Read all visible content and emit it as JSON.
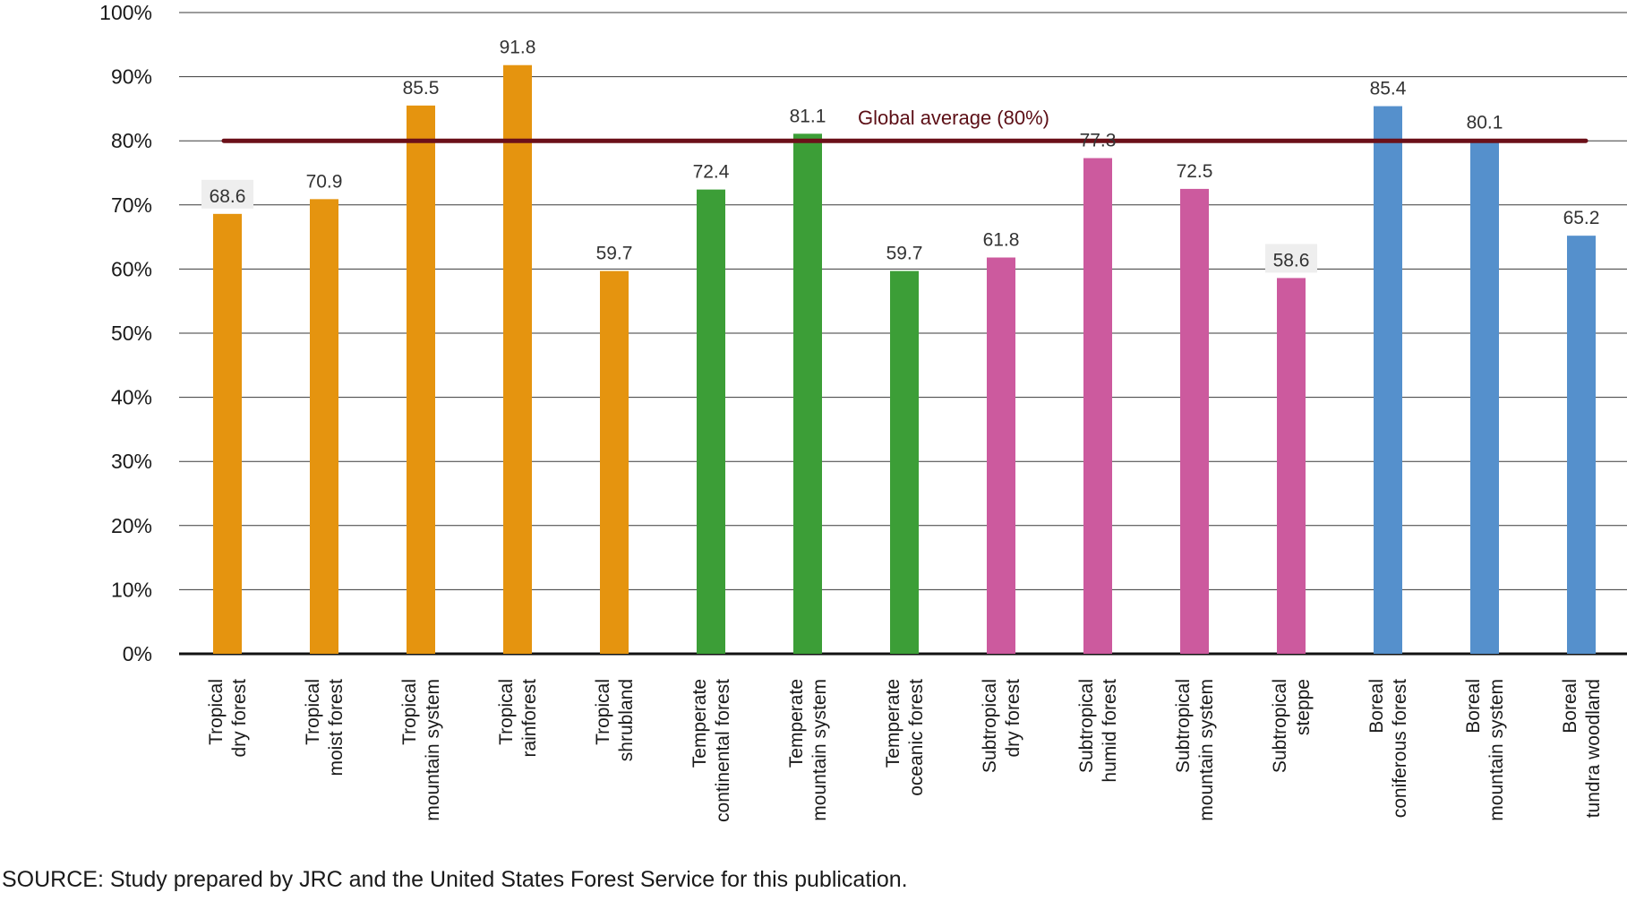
{
  "chart_data": {
    "type": "bar",
    "categories": [
      [
        "Tropical",
        "dry forest"
      ],
      [
        "Tropical",
        "moist forest"
      ],
      [
        "Tropical",
        "mountain system"
      ],
      [
        "Tropical",
        "rainforest"
      ],
      [
        "Tropical",
        "shrubland"
      ],
      [
        "Temperate",
        "continental forest"
      ],
      [
        "Temperate",
        "mountain system"
      ],
      [
        "Temperate",
        "oceanic forest"
      ],
      [
        "Subtropical",
        "dry forest"
      ],
      [
        "Subtropical",
        "humid forest"
      ],
      [
        "Subtropical",
        "mountain system"
      ],
      [
        "Subtropical",
        "steppe"
      ],
      [
        "Boreal",
        "coniferous forest"
      ],
      [
        "Boreal",
        "mountain system"
      ],
      [
        "Boreal",
        "tundra woodland"
      ]
    ],
    "values": [
      68.6,
      70.9,
      85.5,
      91.8,
      59.7,
      72.4,
      81.1,
      59.7,
      61.8,
      77.3,
      72.5,
      58.6,
      85.4,
      80.1,
      65.2
    ],
    "value_labels": [
      "68.6",
      "70.9",
      "85.5",
      "91.8",
      "59.7",
      "72.4",
      "81.1",
      "59.7",
      "61.8",
      "77.3",
      "72.5",
      "58.6",
      "85.4",
      "80.1",
      "65.2"
    ],
    "highlighted_labels": [
      0,
      11
    ],
    "colors": [
      "#e5940f",
      "#e5940f",
      "#e5940f",
      "#e5940f",
      "#e5940f",
      "#3c9e37",
      "#3c9e37",
      "#3c9e37",
      "#cc5a9e",
      "#cc5a9e",
      "#cc5a9e",
      "#cc5a9e",
      "#5590cc",
      "#5590cc",
      "#5590cc"
    ],
    "ylim": [
      0,
      100
    ],
    "yticks": [
      0,
      10,
      20,
      30,
      40,
      50,
      60,
      70,
      80,
      90,
      100
    ],
    "ytick_labels": [
      "0%",
      "10%",
      "20%",
      "30%",
      "40%",
      "50%",
      "60%",
      "70%",
      "80%",
      "90%",
      "100%"
    ],
    "grid": true,
    "reference_line": {
      "value": 80,
      "label": "Global average (80%)",
      "color": "#6b1019"
    },
    "title": "",
    "xlabel": "",
    "ylabel": ""
  },
  "source_note": "SOURCE: Study prepared by JRC and the United States Forest Service for this publication."
}
